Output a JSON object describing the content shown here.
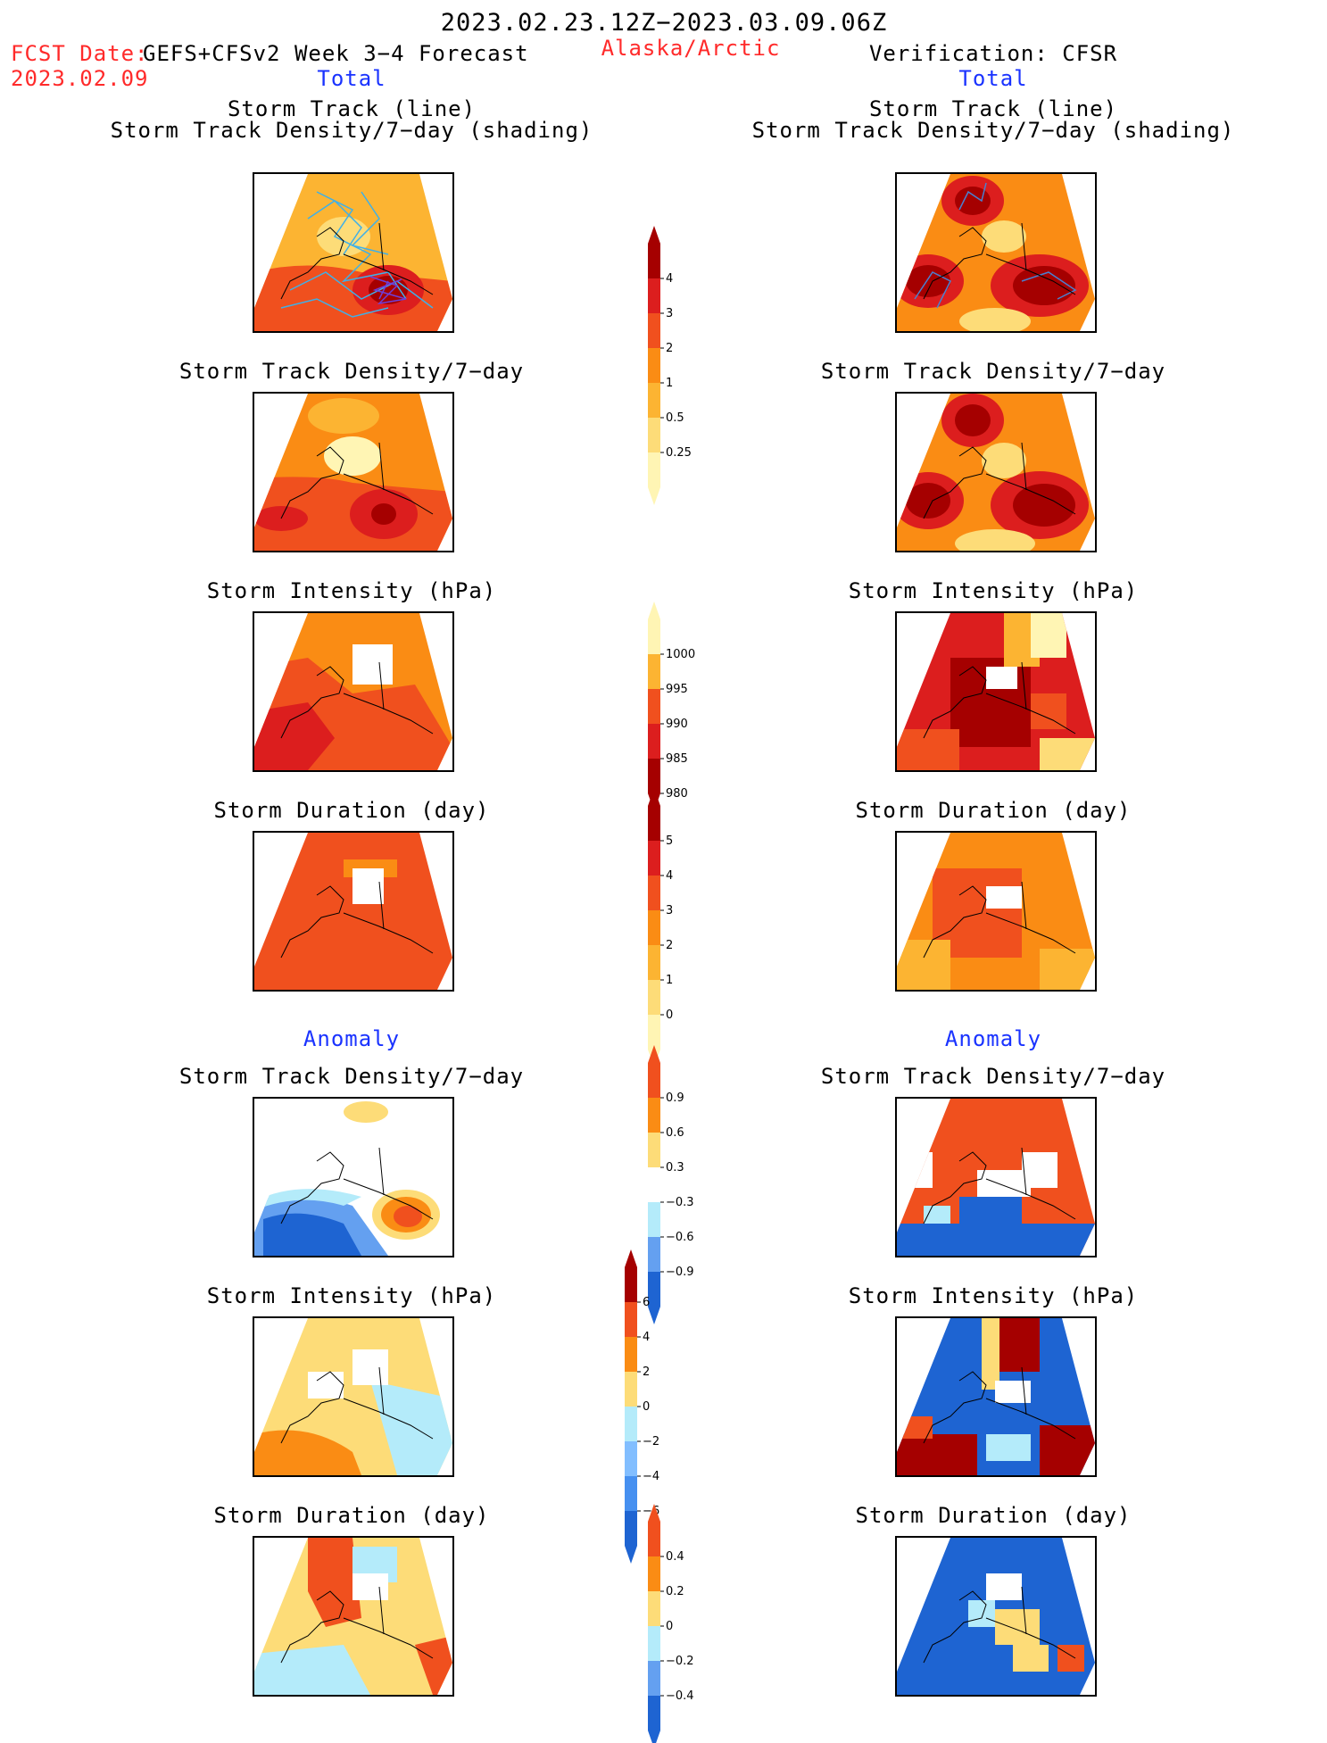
{
  "header": {
    "period": "2023.02.23.12Z−2023.03.09.06Z",
    "fcst_date_label": "FCST Date:",
    "fcst_date": "2023.02.09",
    "model": "GEFS+CFSv2 Week 3−4 Forecast",
    "region": "Alaska/Arctic",
    "verification": "Verification: CFSR",
    "left_total": "Total",
    "right_total": "Total",
    "left_anomaly": "Anomaly",
    "right_anomaly": "Anomaly"
  },
  "titles": {
    "track_line": "Storm Track (line)",
    "track_shading": "Storm Track Density/7−day (shading)",
    "density": "Storm Track Density/7−day",
    "intensity": "Storm Intensity (hPa)",
    "duration": "Storm Duration (day)"
  },
  "colorbars": {
    "density": {
      "labels": [
        "4",
        "3",
        "2",
        "1",
        "0.5",
        "0.25"
      ],
      "colors": [
        "#a50000",
        "#dc1e1e",
        "#f0501e",
        "#fa8c14",
        "#fcb432",
        "#fddc78",
        "#fff5b4"
      ]
    },
    "intensity": {
      "labels": [
        "1000",
        "995",
        "990",
        "985",
        "980"
      ],
      "colors": [
        "#fff5b4",
        "#fcb432",
        "#f0501e",
        "#dc1e1e",
        "#a50000"
      ]
    },
    "duration": {
      "labels": [
        "5",
        "4",
        "3",
        "2",
        "1",
        "0"
      ],
      "colors": [
        "#a50000",
        "#dc1e1e",
        "#f0501e",
        "#fa8c14",
        "#fcb432",
        "#fddc78",
        "#fff5b4"
      ]
    },
    "density_anom": {
      "labels": [
        "0.9",
        "0.6",
        "0.3",
        "−0.3",
        "−0.6",
        "−0.9"
      ],
      "colors": [
        "#f0501e",
        "#fa8c14",
        "#fddc78",
        "#ffffff",
        "#b4ebfa",
        "#64a0f0",
        "#1e64d2"
      ]
    },
    "intensity_anom": {
      "labels": [
        "6",
        "4",
        "2",
        "0",
        "−2",
        "−4",
        "−6"
      ],
      "colors": [
        "#a50000",
        "#f0501e",
        "#fa8c14",
        "#fddc78",
        "#b4ebfa",
        "#82beff",
        "#4690f0",
        "#1e64d2"
      ]
    },
    "duration_anom": {
      "labels": [
        "0.4",
        "0.2",
        "0",
        "−0.2",
        "−0.4"
      ],
      "colors": [
        "#f0501e",
        "#fa8c14",
        "#fddc78",
        "#b4ebfa",
        "#64a0f0",
        "#1e64d2"
      ]
    }
  }
}
